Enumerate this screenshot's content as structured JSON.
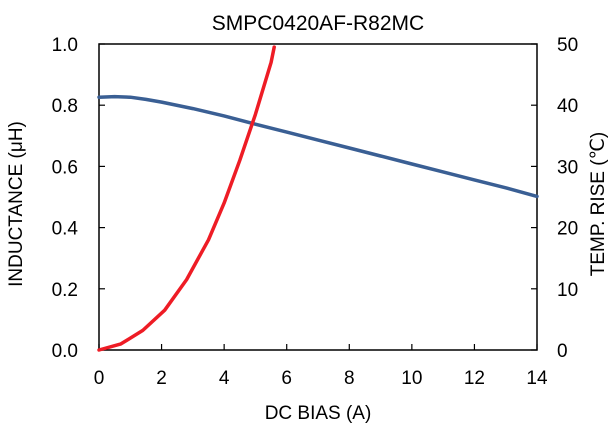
{
  "chart_data": {
    "type": "line",
    "title": "SMPC0420AF-R82MC",
    "xlabel": "DC BIAS (A)",
    "ylabel": "INDUCTANCE (μH)",
    "y2label": "TEMP. RISE (℃)",
    "xlim": [
      0,
      14
    ],
    "ylim": [
      0,
      1.0
    ],
    "y2lim": [
      0,
      50
    ],
    "x_ticks": [
      "0",
      "2",
      "4",
      "6",
      "8",
      "10",
      "12",
      "14"
    ],
    "y_ticks": [
      "0.0",
      "0.2",
      "0.4",
      "0.6",
      "0.8",
      "1.0"
    ],
    "y2_ticks": [
      "0",
      "10",
      "20",
      "30",
      "40",
      "50"
    ],
    "grid": false,
    "series": [
      {
        "axis": "left",
        "color": "#3a5f94",
        "x": [
          0,
          0.5,
          1.0,
          1.5,
          2,
          3,
          4,
          5,
          6,
          7,
          8,
          9,
          10,
          11,
          12,
          13,
          14
        ],
        "values": [
          0.826,
          0.828,
          0.826,
          0.819,
          0.81,
          0.789,
          0.765,
          0.738,
          0.712,
          0.686,
          0.66,
          0.634,
          0.608,
          0.582,
          0.556,
          0.53,
          0.502
        ]
      },
      {
        "axis": "right",
        "color": "#ee1c25",
        "x": [
          0,
          0.7,
          1.4,
          2.1,
          2.8,
          3.5,
          4.0,
          4.5,
          5.0,
          5.5,
          5.6
        ],
        "values": [
          0,
          1.0,
          3.2,
          6.5,
          11.5,
          18.0,
          24.0,
          31.0,
          38.5,
          47.0,
          49.5
        ]
      }
    ]
  }
}
